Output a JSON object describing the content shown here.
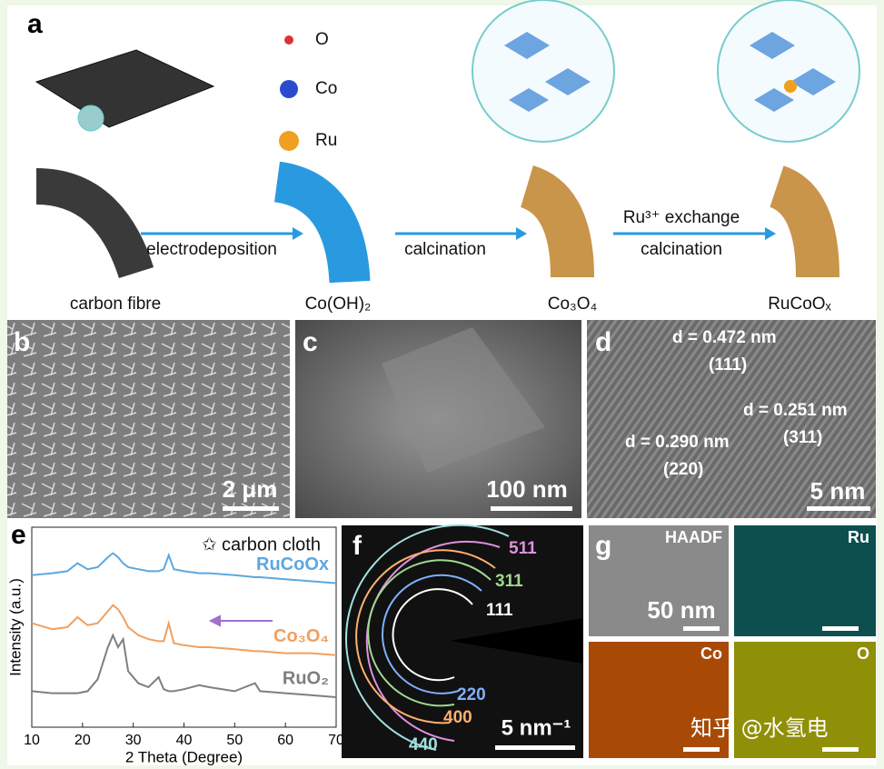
{
  "panel_a": {
    "label": "a",
    "legend": [
      "O",
      "Co",
      "Ru"
    ],
    "steps": [
      "electrodeposition",
      "calcination",
      "Ru³⁺ exchange",
      "calcination"
    ],
    "materials": [
      "carbon fibre",
      "Co(OH)₂",
      "Co₃O₄",
      "RuCoOₓ"
    ]
  },
  "panel_b": {
    "label": "b",
    "scale_bar": "2 μm"
  },
  "panel_c": {
    "label": "c",
    "scale_bar": "100 nm"
  },
  "panel_d": {
    "label": "d",
    "annotations": [
      "d = 0.472 nm",
      "(111)",
      "d = 0.251 nm",
      "(311)",
      "d = 0.290 nm",
      "(220)"
    ],
    "scale_bar": "5 nm"
  },
  "panel_e": {
    "label": "e",
    "chart_data": {
      "type": "line",
      "annotation": "carbon cloth",
      "xlabel": "2 Theta (Degree)",
      "ylabel": "Intensity (a.u.)",
      "x": [
        10,
        14,
        17,
        19,
        21,
        23,
        25,
        26,
        27,
        28,
        29,
        31,
        33,
        35,
        36,
        37,
        38,
        40,
        43,
        45,
        50,
        54,
        55,
        60,
        65,
        70
      ],
      "series": [
        {
          "name": "RuCoOx",
          "color": "#5ba8e0",
          "values": [
            76,
            77,
            78,
            82,
            79,
            80,
            85,
            87,
            85,
            82,
            80,
            79,
            78,
            78,
            79,
            86,
            79,
            78,
            77,
            77,
            76,
            75,
            75,
            74,
            73,
            72
          ]
        },
        {
          "name": "Co₃O₄",
          "color": "#f0a060",
          "values": [
            52,
            49,
            50,
            55,
            51,
            52,
            58,
            61,
            59,
            55,
            50,
            46,
            44,
            43,
            43,
            52,
            42,
            41,
            40,
            40,
            39,
            38,
            38,
            37,
            37,
            36
          ]
        },
        {
          "name": "RuO₂",
          "color": "#7f7f7f",
          "values": [
            18,
            17,
            17,
            17,
            18,
            24,
            40,
            46,
            40,
            44,
            28,
            22,
            20,
            25,
            19,
            18,
            18,
            19,
            21,
            20,
            18,
            22,
            18,
            17,
            16,
            15
          ]
        }
      ],
      "xlim": [
        10,
        70
      ],
      "xticks": [
        10,
        20,
        30,
        40,
        50,
        60,
        70
      ],
      "ylim": [
        0,
        100
      ]
    }
  },
  "panel_f": {
    "label": "f",
    "rings": [
      "511",
      "311",
      "111",
      "220",
      "400",
      "440"
    ],
    "scale_bar": "5 nm⁻¹"
  },
  "panel_g": {
    "label": "g",
    "maps": [
      "HAADF",
      "Ru",
      "Co",
      "O"
    ],
    "scale_bar": "50 nm"
  },
  "watermark": "知乎 @水氢电"
}
